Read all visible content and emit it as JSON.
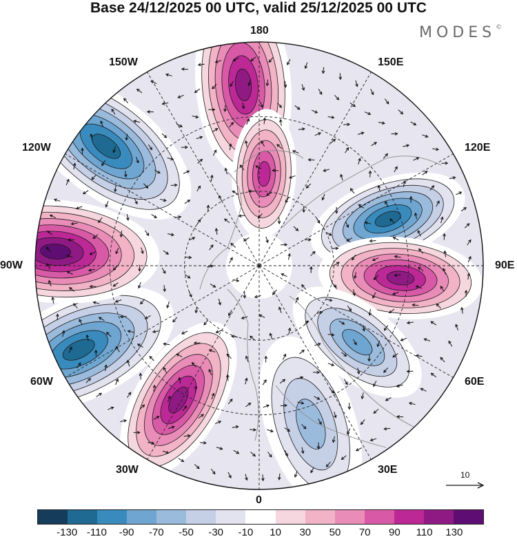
{
  "title": "Base 24/12/2025 00 UTC, valid 25/12/2025 00 UTC",
  "brand": {
    "name": "MODES",
    "mark": "©"
  },
  "meridian_labels": {
    "lon_180": "180",
    "lon_150e": "150E",
    "lon_120e": "120E",
    "lon_90e": "90E",
    "lon_60e": "60E",
    "lon_30e": "30E",
    "lon_0": "0",
    "lon_30w": "30W",
    "lon_60w": "60W",
    "lon_90w": "90W",
    "lon_120w": "120W",
    "lon_150w": "150W"
  },
  "vector_scale": {
    "value": "10"
  },
  "colorbar": {
    "colors": [
      "#153c5a",
      "#1f6a92",
      "#3a8bbd",
      "#6ea6d1",
      "#9bbbdc",
      "#c5cfe6",
      "#e3e2ef",
      "#ffffff",
      "#f6d7df",
      "#f2b3c7",
      "#e98cb7",
      "#d85aa6",
      "#bc2896",
      "#901a84",
      "#5e0e72"
    ],
    "tick_labels": [
      "-130",
      "-110",
      "-90",
      "-70",
      "-50",
      "-30",
      "-10",
      "10",
      "30",
      "50",
      "70",
      "90",
      "110",
      "130"
    ]
  },
  "anomaly_centers": [
    {
      "name": "pacific-sector-high",
      "lon_deg": 185,
      "colat_deg": 73,
      "value": 110
    },
    {
      "name": "pole-pacific-high",
      "lon_deg": 177,
      "colat_deg": 37,
      "value": 90
    },
    {
      "name": "east-siberia-low",
      "lon_deg": 110,
      "colat_deg": 55,
      "value": -130
    },
    {
      "name": "central-asia-high",
      "lon_deg": 85,
      "colat_deg": 57,
      "value": 120
    },
    {
      "name": "ural-low",
      "lon_deg": 52,
      "colat_deg": 50,
      "value": -80
    },
    {
      "name": "europe-low",
      "lon_deg": 18,
      "colat_deg": 67,
      "value": -60
    },
    {
      "name": "atlantic-high",
      "lon_deg": 329,
      "colat_deg": 63,
      "value": 120
    },
    {
      "name": "north-america-east-low",
      "lon_deg": 295,
      "colat_deg": 80,
      "value": -130
    },
    {
      "name": "north-america-west-high",
      "lon_deg": 266,
      "colat_deg": 82,
      "value": 130
    },
    {
      "name": "alaska-low",
      "lon_deg": 232,
      "colat_deg": 78,
      "value": -130
    }
  ]
}
